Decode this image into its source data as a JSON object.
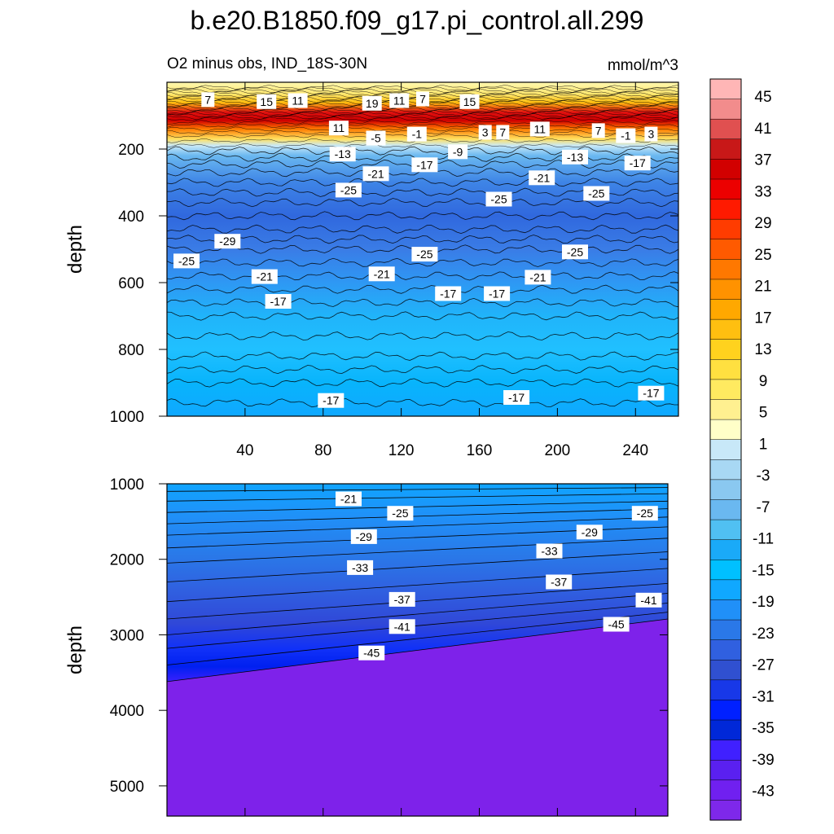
{
  "title": "b.e20.B1850.f09_g17.pi_control.all.299",
  "chart_data": {
    "type": "contour",
    "subtitle_left": "O2 minus obs, IND_18S-30N",
    "subtitle_right": "mmol/m^3",
    "ylabel": "depth",
    "colorbar": {
      "labels": [
        "45",
        "41",
        "37",
        "33",
        "29",
        "25",
        "21",
        "17",
        "13",
        "9",
        "5",
        "1",
        "-3",
        "-7",
        "-11",
        "-15",
        "-19",
        "-23",
        "-27",
        "-31",
        "-35",
        "-39",
        "-43"
      ],
      "colors": [
        "#ffb6b6",
        "#f28c8c",
        "#e05050",
        "#c81818",
        "#d20000",
        "#ec0000",
        "#ff1a00",
        "#ff3c00",
        "#ff5a00",
        "#ff7800",
        "#ff9200",
        "#ffa800",
        "#ffbf10",
        "#ffd21e",
        "#ffe040",
        "#ffea60",
        "#fff090",
        "#ffffc8",
        "#c8e8f8",
        "#a8d8f4",
        "#8ac8f0",
        "#6ab8f0",
        "#50c0f2",
        "#1aaaf8",
        "#00c0ff",
        "#10a8ff",
        "#2090f8",
        "#2a78e8",
        "#3060e0",
        "#3050d0",
        "#1838e8",
        "#0020ff",
        "#0028d8",
        "#4020ff",
        "#5a20f0",
        "#7020f0",
        "#7e28ea"
      ]
    },
    "panels": [
      {
        "ylim": [
          0,
          1000
        ],
        "yticks": [
          200,
          400,
          600,
          800,
          1000
        ],
        "xlim": [
          0,
          262
        ],
        "xticks": [
          40,
          80,
          120,
          160,
          200,
          240
        ],
        "contour_labels": [
          {
            "x": 21,
            "y": 52,
            "text": "7"
          },
          {
            "x": 51,
            "y": 58,
            "text": "15"
          },
          {
            "x": 67,
            "y": 55,
            "text": "11"
          },
          {
            "x": 105,
            "y": 63,
            "text": "19"
          },
          {
            "x": 119,
            "y": 55,
            "text": "11"
          },
          {
            "x": 131,
            "y": 50,
            "text": "7"
          },
          {
            "x": 155,
            "y": 58,
            "text": "15"
          },
          {
            "x": 88,
            "y": 137,
            "text": "11"
          },
          {
            "x": 107,
            "y": 167,
            "text": "-5"
          },
          {
            "x": 128,
            "y": 155,
            "text": "-1"
          },
          {
            "x": 163,
            "y": 150,
            "text": "3"
          },
          {
            "x": 172,
            "y": 150,
            "text": "7"
          },
          {
            "x": 191,
            "y": 140,
            "text": "11"
          },
          {
            "x": 221,
            "y": 145,
            "text": "7"
          },
          {
            "x": 235,
            "y": 160,
            "text": "-1"
          },
          {
            "x": 248,
            "y": 155,
            "text": "3"
          },
          {
            "x": 90,
            "y": 215,
            "text": "-13"
          },
          {
            "x": 149,
            "y": 208,
            "text": "-9"
          },
          {
            "x": 107,
            "y": 274,
            "text": "-21"
          },
          {
            "x": 132,
            "y": 247,
            "text": "-17"
          },
          {
            "x": 209,
            "y": 224,
            "text": "-13"
          },
          {
            "x": 241,
            "y": 242,
            "text": "-17"
          },
          {
            "x": 93,
            "y": 323,
            "text": "-25"
          },
          {
            "x": 192,
            "y": 286,
            "text": "-21"
          },
          {
            "x": 170,
            "y": 350,
            "text": "-25"
          },
          {
            "x": 220,
            "y": 333,
            "text": "-25"
          },
          {
            "x": 31,
            "y": 476,
            "text": "-29"
          },
          {
            "x": 10,
            "y": 535,
            "text": "-25"
          },
          {
            "x": 50,
            "y": 582,
            "text": "-21"
          },
          {
            "x": 110,
            "y": 574,
            "text": "-21"
          },
          {
            "x": 132,
            "y": 515,
            "text": "-25"
          },
          {
            "x": 209,
            "y": 508,
            "text": "-25"
          },
          {
            "x": 190,
            "y": 584,
            "text": "-21"
          },
          {
            "x": 57,
            "y": 656,
            "text": "-17"
          },
          {
            "x": 144,
            "y": 633,
            "text": "-17"
          },
          {
            "x": 169,
            "y": 633,
            "text": "-17"
          },
          {
            "x": 84,
            "y": 953,
            "text": "-17"
          },
          {
            "x": 179,
            "y": 944,
            "text": "-17"
          },
          {
            "x": 248,
            "y": 931,
            "text": "-17"
          }
        ]
      },
      {
        "ylim": [
          1000,
          5400
        ],
        "yticks": [
          1000,
          2000,
          3000,
          4000,
          5000
        ],
        "xlim": [
          0,
          262
        ],
        "xticks": [
          40,
          80,
          120,
          160,
          200,
          240
        ],
        "contour_labels": [
          {
            "x": 95,
            "y": 1200,
            "text": "-21"
          },
          {
            "x": 122,
            "y": 1390,
            "text": "-25"
          },
          {
            "x": 250,
            "y": 1390,
            "text": "-25"
          },
          {
            "x": 103,
            "y": 1700,
            "text": "-29"
          },
          {
            "x": 221,
            "y": 1640,
            "text": "-29"
          },
          {
            "x": 101,
            "y": 2110,
            "text": "-33"
          },
          {
            "x": 200,
            "y": 1890,
            "text": "-33"
          },
          {
            "x": 205,
            "y": 2300,
            "text": "-37"
          },
          {
            "x": 123,
            "y": 2530,
            "text": "-37"
          },
          {
            "x": 252,
            "y": 2540,
            "text": "-41"
          },
          {
            "x": 123,
            "y": 2890,
            "text": "-41"
          },
          {
            "x": 235,
            "y": 2860,
            "text": "-45"
          },
          {
            "x": 107,
            "y": 3240,
            "text": "-45"
          }
        ]
      }
    ]
  }
}
